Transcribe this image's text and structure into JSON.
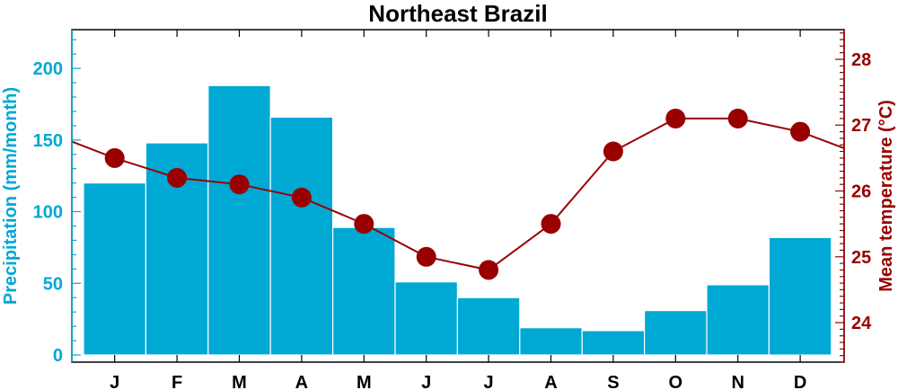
{
  "chart_data": {
    "type": "bar",
    "title": "Northeast Brazil",
    "categories": [
      "J",
      "F",
      "M",
      "A",
      "M",
      "J",
      "J",
      "A",
      "S",
      "O",
      "N",
      "D"
    ],
    "series": [
      {
        "type": "bar",
        "axis": "left",
        "values": [
          120,
          148,
          188,
          166,
          89,
          51,
          40,
          19,
          17,
          31,
          49,
          82
        ],
        "color": "#00A8D4"
      },
      {
        "type": "line",
        "axis": "right",
        "values": [
          26.5,
          26.2,
          26.1,
          25.9,
          25.5,
          25.0,
          24.8,
          25.5,
          26.6,
          27.1,
          27.1,
          26.9
        ],
        "edge_left": 26.75,
        "edge_right": 26.65,
        "color": "#990000"
      }
    ],
    "y_left": {
      "label": "Precipitation (mm/month)",
      "ticks": [
        "0",
        "50",
        "100",
        "150",
        "200"
      ],
      "range": [
        -5,
        227
      ],
      "color": "#00A8D4"
    },
    "y_right": {
      "label": "Mean temperature (°C)",
      "ticks": [
        "24",
        "25",
        "26",
        "27",
        "28"
      ],
      "range": [
        23.4,
        28.45
      ],
      "color": "#990000"
    },
    "grid": false,
    "legend": "none"
  }
}
